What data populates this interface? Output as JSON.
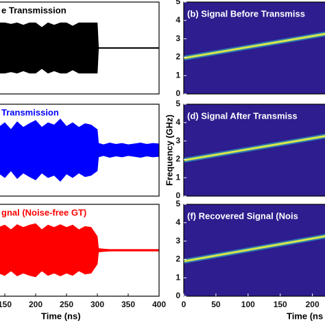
{
  "chart_data": [
    {
      "type": "envelope",
      "title": "e Transmission",
      "title_color": "#000000",
      "series": [
        {
          "color": "#000000",
          "x": [
            140,
            150,
            160,
            170,
            180,
            190,
            200,
            210,
            220,
            230,
            240,
            250,
            260,
            270,
            280,
            290,
            300,
            302,
            310,
            320,
            330,
            340,
            350,
            360,
            370,
            380,
            390,
            400
          ],
          "values": [
            0.55,
            0.55,
            0.52,
            0.55,
            0.5,
            0.55,
            0.55,
            0.45,
            0.55,
            0.5,
            0.55,
            0.55,
            0.48,
            0.55,
            0.55,
            0.55,
            0.55,
            0.01,
            0.01,
            0.01,
            0.01,
            0.01,
            0.01,
            0.01,
            0.01,
            0.01,
            0.01,
            0.01
          ]
        }
      ],
      "xlim": [
        140,
        400
      ],
      "ylim": [
        -1,
        1
      ]
    },
    {
      "type": "spectrogram",
      "title": "(b) Signal Before Transmiss",
      "series": [
        {
          "color": "#d7e84a",
          "x": [
            0,
            226
          ],
          "values": [
            1.95,
            3.3
          ]
        }
      ],
      "xlim": [
        0,
        226
      ],
      "ylim": [
        0,
        5
      ],
      "yticks": [
        0,
        1,
        2,
        3,
        4,
        5
      ],
      "background": "#2d1d8e"
    },
    {
      "type": "envelope",
      "title": "Transmission",
      "title_color": "#0000ff",
      "series": [
        {
          "color": "#0000ff",
          "x": [
            140,
            150,
            160,
            170,
            180,
            190,
            200,
            210,
            220,
            230,
            240,
            250,
            260,
            270,
            280,
            290,
            300,
            302,
            310,
            320,
            330,
            340,
            350,
            360,
            370,
            380,
            390,
            400
          ],
          "values": [
            0.5,
            0.6,
            0.45,
            0.62,
            0.5,
            0.58,
            0.65,
            0.5,
            0.6,
            0.55,
            0.68,
            0.52,
            0.6,
            0.5,
            0.58,
            0.55,
            0.45,
            0.15,
            0.12,
            0.16,
            0.13,
            0.15,
            0.12,
            0.14,
            0.16,
            0.13,
            0.15,
            0.14
          ]
        }
      ],
      "xlim": [
        140,
        400
      ],
      "ylim": [
        -1,
        1
      ]
    },
    {
      "type": "spectrogram",
      "title": "(d) Signal After Transmiss",
      "ylabel": "Frequency (GHz)",
      "series": [
        {
          "color": "#d7e84a",
          "x": [
            0,
            226
          ],
          "values": [
            1.95,
            3.3
          ]
        }
      ],
      "xlim": [
        0,
        226
      ],
      "ylim": [
        0,
        5
      ],
      "yticks": [
        0,
        1,
        2,
        3,
        4,
        5
      ],
      "background": "#2d1d8e"
    },
    {
      "type": "envelope",
      "title": "gnal (Noise-free GT)",
      "title_color": "#ff0000",
      "series": [
        {
          "color": "#ff0000",
          "x": [
            140,
            150,
            160,
            170,
            180,
            190,
            200,
            210,
            220,
            230,
            240,
            250,
            260,
            270,
            280,
            290,
            300,
            302,
            310,
            320,
            330,
            340,
            350,
            360,
            370,
            380,
            390,
            400
          ],
          "values": [
            0.5,
            0.55,
            0.45,
            0.56,
            0.5,
            0.55,
            0.58,
            0.45,
            0.55,
            0.5,
            0.56,
            0.5,
            0.55,
            0.45,
            0.52,
            0.5,
            0.3,
            0.04,
            0.03,
            0.02,
            0.02,
            0.02,
            0.02,
            0.02,
            0.02,
            0.02,
            0.02,
            0.02
          ]
        }
      ],
      "xlim": [
        140,
        400
      ],
      "ylim": [
        -1,
        1
      ],
      "xticks": [
        150,
        200,
        250,
        300,
        350,
        400
      ],
      "xlabel": "Time (ns)"
    },
    {
      "type": "spectrogram",
      "title": "(f) Recovered Signal (Nois",
      "series": [
        {
          "color": "#d7e84a",
          "x": [
            0,
            226
          ],
          "values": [
            1.9,
            3.3
          ]
        }
      ],
      "xlim": [
        0,
        226
      ],
      "ylim": [
        0,
        5
      ],
      "yticks": [
        0,
        1,
        2,
        3,
        4,
        5
      ],
      "xticks": [
        0,
        50,
        100,
        150,
        200
      ],
      "xlabel": "Time (ns",
      "background": "#2d1d8e"
    }
  ]
}
